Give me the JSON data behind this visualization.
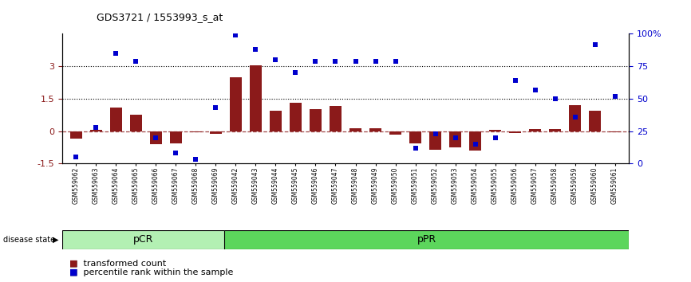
{
  "title": "GDS3721 / 1553993_s_at",
  "samples": [
    "GSM559062",
    "GSM559063",
    "GSM559064",
    "GSM559065",
    "GSM559066",
    "GSM559067",
    "GSM559068",
    "GSM559069",
    "GSM559042",
    "GSM559043",
    "GSM559044",
    "GSM559045",
    "GSM559046",
    "GSM559047",
    "GSM559048",
    "GSM559049",
    "GSM559050",
    "GSM559051",
    "GSM559052",
    "GSM559053",
    "GSM559054",
    "GSM559055",
    "GSM559056",
    "GSM559057",
    "GSM559058",
    "GSM559059",
    "GSM559060",
    "GSM559061"
  ],
  "transformed_count": [
    -0.35,
    0.05,
    1.1,
    0.75,
    -0.6,
    -0.55,
    -0.05,
    -0.12,
    2.5,
    3.05,
    0.95,
    1.3,
    1.0,
    1.15,
    0.15,
    0.15,
    -0.15,
    -0.55,
    -0.85,
    -0.75,
    -0.9,
    0.05,
    -0.1,
    0.1,
    0.08,
    1.2,
    0.95,
    -0.05
  ],
  "percentile_rank": [
    5,
    28,
    85,
    79,
    20,
    8,
    3,
    43,
    99,
    88,
    80,
    70,
    79,
    79,
    79,
    79,
    79,
    12,
    23,
    20,
    15,
    20,
    64,
    57,
    50,
    36,
    92,
    52
  ],
  "pcr_count": 8,
  "ppr_count": 20,
  "group_label_pcr": "pCR",
  "group_label_ppr": "pPR",
  "group_color_pcr": "#b3f0b3",
  "group_color_ppr": "#5cd65c",
  "bar_color": "#8B1A1A",
  "dot_color": "#0000CD",
  "ylim_left": [
    -1.5,
    4.5
  ],
  "ylim_right": [
    0,
    100
  ],
  "yticks_left": [
    -1.5,
    0,
    1.5,
    3
  ],
  "yticks_right": [
    0,
    25,
    50,
    75,
    100
  ],
  "hlines": [
    3.0,
    1.5
  ],
  "disease_state_label": "disease state",
  "legend_label_bar": "transformed count",
  "legend_label_dot": "percentile rank within the sample"
}
